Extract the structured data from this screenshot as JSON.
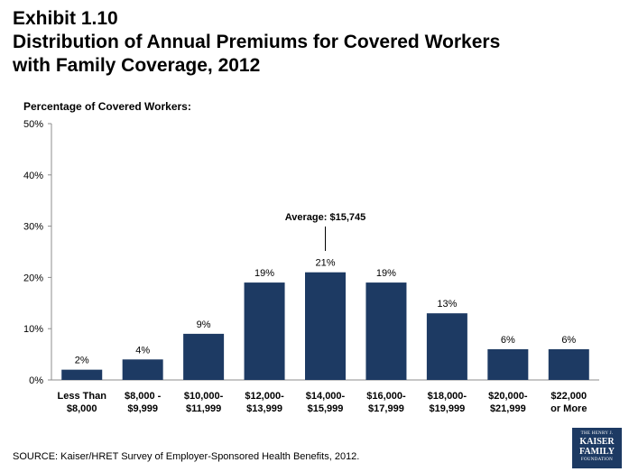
{
  "header": {
    "exhibit": "Exhibit 1.10",
    "title_line1": "Distribution of Annual Premiums for Covered Workers",
    "title_line2": "with Family Coverage, 2012"
  },
  "chart_data": {
    "type": "bar",
    "ylabel": "Percentage of Covered Workers:",
    "xlabel": "",
    "ylim": [
      0,
      50
    ],
    "yticks": [
      "0%",
      "10%",
      "20%",
      "30%",
      "40%",
      "50%"
    ],
    "categories": [
      [
        "Less Than",
        "$8,000"
      ],
      [
        "$8,000 -",
        "$9,999"
      ],
      [
        "$10,000-",
        "$11,999"
      ],
      [
        "$12,000-",
        "$13,999"
      ],
      [
        "$14,000-",
        "$15,999"
      ],
      [
        "$16,000-",
        "$17,999"
      ],
      [
        "$18,000-",
        "$19,999"
      ],
      [
        "$20,000-",
        "$21,999"
      ],
      [
        "$22,000",
        "or More"
      ]
    ],
    "values": [
      2,
      4,
      9,
      19,
      21,
      19,
      13,
      6,
      6
    ],
    "data_labels": [
      "2%",
      "4%",
      "9%",
      "19%",
      "21%",
      "19%",
      "13%",
      "6%",
      "6%"
    ],
    "bar_color": "#1d3a63",
    "grid": false,
    "annotation": {
      "text": "Average: $15,745",
      "category_index": 4
    }
  },
  "footer": {
    "source": "SOURCE:  Kaiser/HRET Survey of Employer-Sponsored Health Benefits, 2012."
  },
  "logo": {
    "line1": "THE HENRY J.",
    "line2": "KAISER",
    "line3": "FAMILY",
    "line4": "FOUNDATION"
  }
}
